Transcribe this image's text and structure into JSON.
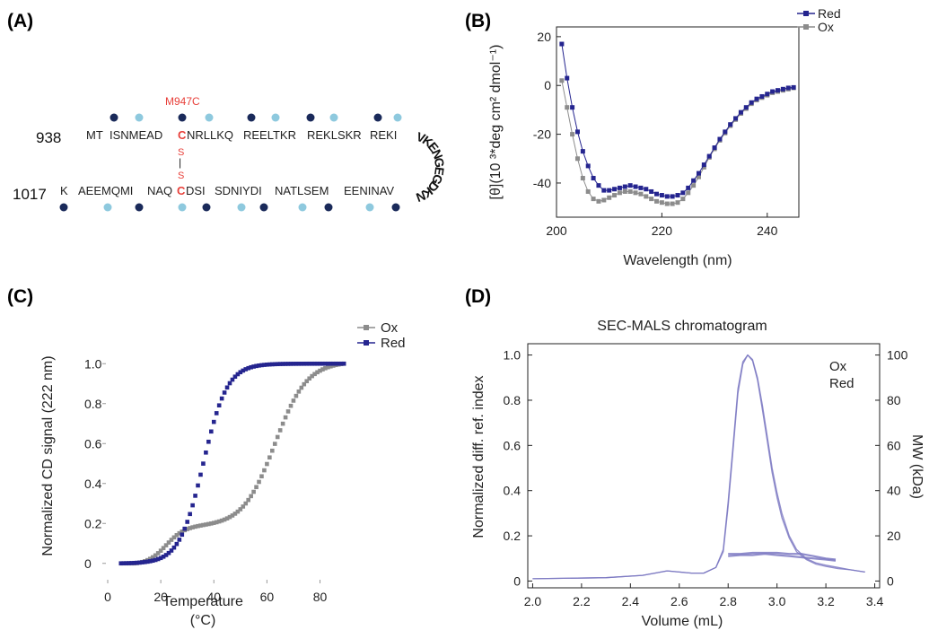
{
  "panels": [
    "(A)",
    "(B)",
    "(C)",
    "(D)"
  ],
  "colors": {
    "red": "#25258f",
    "ox": "#8c8c8c",
    "dark_dot": "#1a2a5a",
    "light_dot": "#8ec9de",
    "mutation": "#e8413b",
    "sec_line": "#7b78c2"
  },
  "panel_a": {
    "top_number": "938",
    "bottom_number": "1017",
    "mutation_label": "M947C",
    "top_segments": [
      "MT",
      "ISNMEAD",
      "C",
      "NRLLKQ",
      "REELTKR",
      "REKLSKR",
      "REKI"
    ],
    "bottom_segments": [
      "K",
      "AEEMQMI",
      "NAQ",
      "C",
      "DSI",
      "SDNIYDI",
      "NATLSEM",
      "EENINAV"
    ],
    "loop_letters": [
      "V",
      "K",
      "E",
      "N",
      "G",
      "E",
      "G",
      "D",
      "K",
      "N"
    ],
    "disulfide": [
      "S",
      "|",
      "S"
    ],
    "top_dots": [
      "dark",
      "light",
      "dark",
      "light",
      "dark",
      "light",
      "dark",
      "light",
      "dark",
      "light"
    ],
    "bottom_dots": [
      "dark",
      "light",
      "dark",
      "light",
      "dark",
      "light",
      "dark",
      "light",
      "dark",
      "light",
      "dark"
    ]
  },
  "chart_data": [
    {
      "type": "scatter",
      "panel": "(B)",
      "xlabel": "Wavelength (nm)",
      "ylabel": "[θ](10 ³*deg cm² dmol⁻¹)",
      "xlim": [
        200,
        246
      ],
      "ylim": [
        -54,
        24
      ],
      "xticks": [
        200,
        220,
        240
      ],
      "yticks": [
        20,
        0,
        -20,
        -40
      ],
      "legend": "top-right",
      "series": [
        {
          "name": "Red",
          "x": [
            201,
            202,
            203,
            204,
            205,
            206,
            207,
            208,
            209,
            210,
            211,
            212,
            213,
            214,
            215,
            216,
            217,
            218,
            219,
            220,
            221,
            222,
            223,
            224,
            225,
            226,
            227,
            228,
            229,
            230,
            231,
            232,
            233,
            234,
            235,
            236,
            237,
            238,
            239,
            240,
            241,
            242,
            243,
            244,
            245
          ],
          "y": [
            17,
            3,
            -9,
            -19,
            -27,
            -33,
            -38,
            -41,
            -43,
            -43,
            -42.5,
            -42,
            -41.5,
            -41,
            -41.5,
            -42,
            -42.5,
            -43.5,
            -44.5,
            -45,
            -45.5,
            -45.5,
            -45,
            -44,
            -42,
            -39,
            -36,
            -32.5,
            -29,
            -25.5,
            -22,
            -19,
            -16,
            -13.5,
            -11,
            -9,
            -7,
            -5.5,
            -4.5,
            -3.5,
            -2.5,
            -2,
            -1.5,
            -1,
            -0.8
          ]
        },
        {
          "name": "Ox",
          "x": [
            201,
            202,
            203,
            204,
            205,
            206,
            207,
            208,
            209,
            210,
            211,
            212,
            213,
            214,
            215,
            216,
            217,
            218,
            219,
            220,
            221,
            222,
            223,
            224,
            225,
            226,
            227,
            228,
            229,
            230,
            231,
            232,
            233,
            234,
            235,
            236,
            237,
            238,
            239,
            240,
            241,
            242,
            243,
            244,
            245
          ],
          "y": [
            2,
            -9,
            -20,
            -30,
            -38,
            -43.5,
            -46.5,
            -47.5,
            -47,
            -46,
            -45,
            -44,
            -43.5,
            -43.5,
            -44,
            -44.5,
            -45.5,
            -46.5,
            -47.5,
            -48,
            -48.5,
            -48.5,
            -48,
            -46.5,
            -44,
            -41,
            -37.5,
            -33.5,
            -29.5,
            -26,
            -22.5,
            -19.5,
            -16.5,
            -14,
            -11.5,
            -9.5,
            -7.5,
            -6,
            -5,
            -4,
            -3,
            -2.5,
            -2,
            -1.5,
            -1
          ]
        }
      ]
    },
    {
      "type": "scatter",
      "panel": "(C)",
      "xlabel": "Temperature",
      "xlabel_unit": "(°C)",
      "ylabel": "Normalized CD signal (222 nm)",
      "xlim": [
        0,
        92
      ],
      "ylim": [
        -0.1,
        1.1
      ],
      "xticks": [
        0,
        20,
        40,
        60,
        80
      ],
      "yticks": [
        "0",
        "0.2",
        "0.4",
        "0.6",
        "0.8",
        "1.0"
      ],
      "ytick_values": [
        0,
        0.2,
        0.4,
        0.6,
        0.8,
        1.0
      ],
      "legend": "top-right",
      "series": [
        {
          "name": "Ox",
          "midpoint": 63,
          "width": 6,
          "x_start": 5,
          "x_end": 89,
          "step": 1
        },
        {
          "name": "Red",
          "midpoint": 36,
          "width": 4.5,
          "x_start": 5,
          "x_end": 89,
          "step": 1
        }
      ]
    },
    {
      "type": "line",
      "panel": "(D)",
      "title": "SEC-MALS chromatogram",
      "xlabel": "Volume (mL)",
      "ylabel": "Normalized diff. ref. index",
      "y2label": "MW (kDa)",
      "xlim": [
        1.98,
        3.42
      ],
      "ylim": [
        -0.03,
        1.05
      ],
      "y2lim": [
        -3,
        105
      ],
      "xticks": [
        "2.0",
        "2.2",
        "2.4",
        "2.6",
        "2.8",
        "3.0",
        "3.2",
        "3.4"
      ],
      "xtick_values": [
        2.0,
        2.2,
        2.4,
        2.6,
        2.8,
        3.0,
        3.2,
        3.4
      ],
      "yticks": [
        "0",
        "0.2",
        "0.4",
        "0.6",
        "0.8",
        "1.0"
      ],
      "ytick_values": [
        0,
        0.2,
        0.4,
        0.6,
        0.8,
        1.0
      ],
      "y2ticks": [
        "0",
        "20",
        "40",
        "60",
        "80",
        "100"
      ],
      "y2tick_values": [
        0,
        20,
        40,
        60,
        80,
        100
      ],
      "legend_entries": [
        "Ox",
        "Red"
      ],
      "legend": "top-right",
      "series": [
        {
          "name": "Ox",
          "x": [
            2.0,
            2.3,
            2.45,
            2.5,
            2.55,
            2.6,
            2.65,
            2.7,
            2.75,
            2.78,
            2.8,
            2.82,
            2.84,
            2.86,
            2.88,
            2.9,
            2.92,
            2.94,
            2.96,
            2.98,
            3.0,
            3.02,
            3.05,
            3.08,
            3.12,
            3.16,
            3.2,
            3.25,
            3.3,
            3.36
          ],
          "y": [
            0.01,
            0.015,
            0.025,
            0.035,
            0.045,
            0.04,
            0.035,
            0.035,
            0.06,
            0.14,
            0.35,
            0.6,
            0.85,
            0.97,
            1.0,
            0.98,
            0.9,
            0.78,
            0.64,
            0.5,
            0.39,
            0.3,
            0.2,
            0.14,
            0.1,
            0.08,
            0.07,
            0.06,
            0.05,
            0.04
          ]
        },
        {
          "name": "Red",
          "x": [
            2.0,
            2.3,
            2.45,
            2.5,
            2.55,
            2.6,
            2.65,
            2.7,
            2.75,
            2.78,
            2.8,
            2.82,
            2.84,
            2.86,
            2.88,
            2.9,
            2.92,
            2.94,
            2.96,
            2.98,
            3.0,
            3.02,
            3.05,
            3.08,
            3.12,
            3.16,
            3.2,
            3.25,
            3.3,
            3.36
          ],
          "y": [
            0.01,
            0.015,
            0.025,
            0.035,
            0.045,
            0.04,
            0.035,
            0.035,
            0.06,
            0.13,
            0.33,
            0.58,
            0.83,
            0.96,
            1.0,
            0.975,
            0.89,
            0.76,
            0.62,
            0.48,
            0.37,
            0.28,
            0.19,
            0.13,
            0.095,
            0.075,
            0.065,
            0.055,
            0.05,
            0.04
          ]
        },
        {
          "name": "Ox MW",
          "axis": "y2",
          "x": [
            2.8,
            2.85,
            2.9,
            2.95,
            3.0,
            3.05,
            3.1,
            3.15,
            3.2,
            3.24
          ],
          "y": [
            12,
            12,
            12.5,
            12.5,
            12.5,
            12,
            12,
            11,
            10,
            9.5
          ]
        },
        {
          "name": "Red MW",
          "axis": "y2",
          "x": [
            2.8,
            2.85,
            2.9,
            2.95,
            3.0,
            3.05,
            3.1,
            3.15,
            3.2,
            3.24
          ],
          "y": [
            11,
            11.5,
            11.5,
            12,
            11.5,
            11,
            10.5,
            10,
            9.5,
            9
          ]
        }
      ]
    }
  ]
}
